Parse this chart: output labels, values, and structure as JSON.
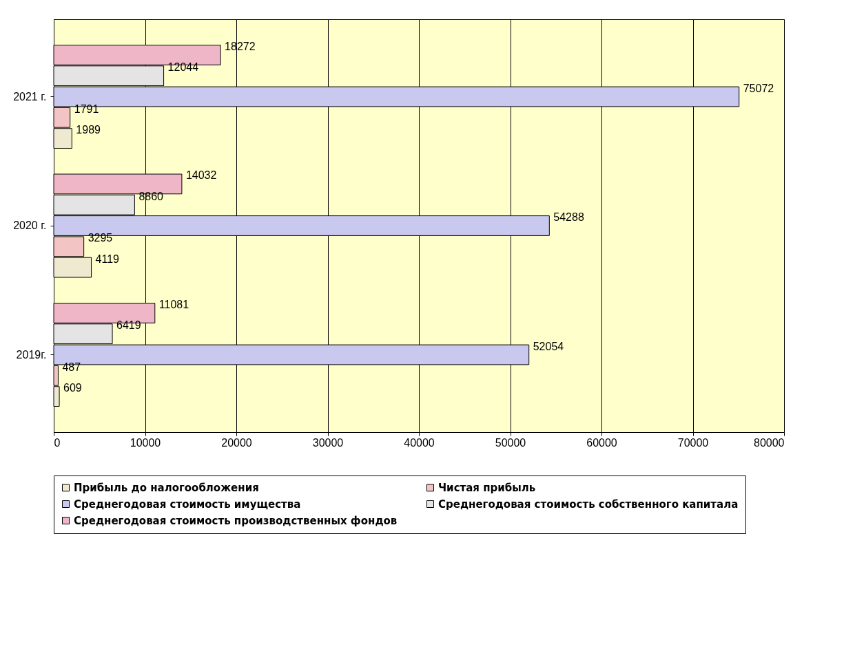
{
  "chart_data": {
    "type": "bar",
    "orientation": "horizontal",
    "categories": [
      "2021 г.",
      "2020 г.",
      "2019г."
    ],
    "series": [
      {
        "name": "Прибыль до налогообложения",
        "color": "#efe9cf",
        "values": [
          1989,
          4119,
          609
        ]
      },
      {
        "name": "Чистая прибыль",
        "color": "#f3c4c4",
        "values": [
          1791,
          3295,
          487
        ]
      },
      {
        "name": "Среднегодовая стоимость имущества",
        "color": "#c9c9ef",
        "values": [
          75072,
          54288,
          52054
        ]
      },
      {
        "name": "Среднегодовая стоимость собственного капитала",
        "color": "#e4e4e4",
        "values": [
          12044,
          8860,
          6419
        ]
      },
      {
        "name": "Среднегодовая стоимость производственных фондов",
        "color": "#efb6c8",
        "values": [
          18272,
          14032,
          11081
        ]
      }
    ],
    "xlim": [
      0,
      80000
    ],
    "xticks": [
      0,
      10000,
      20000,
      30000,
      40000,
      50000,
      60000,
      70000,
      80000
    ],
    "grid": "x",
    "legend": "bottom",
    "data_labels": true
  }
}
